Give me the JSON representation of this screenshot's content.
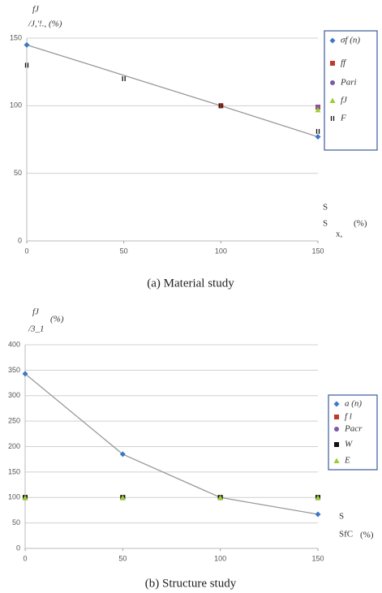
{
  "chart_data": [
    {
      "type": "scatter",
      "caption": "(a) Material study",
      "y_label": [
        "fJ",
        "/J,'!., (%)"
      ],
      "x_label": [
        "S",
        "S",
        "x,",
        "(%)"
      ],
      "xlim": [
        0,
        150
      ],
      "xticks": [
        0,
        50,
        100,
        150
      ],
      "ylim": [
        0,
        150
      ],
      "yticks": [
        0,
        50,
        100,
        150
      ],
      "grid": true,
      "legend": "right",
      "series": [
        {
          "name": "σf (n)",
          "color": "#3c78c8",
          "marker": "diamond",
          "line_color": "#999999",
          "x": [
            0,
            100,
            150
          ],
          "values": [
            145,
            100,
            77
          ]
        },
        {
          "name": "ff",
          "color": "#c0392b",
          "marker": "square",
          "x": [
            100,
            150
          ],
          "values": [
            100,
            99
          ]
        },
        {
          "name": "Pari",
          "color": "#7b5aa6",
          "marker": "circle",
          "x": [
            150
          ],
          "values": [
            99
          ]
        },
        {
          "name": "fJ",
          "color": "#9acd32",
          "marker": "triangle",
          "x": [
            150
          ],
          "values": [
            97
          ]
        },
        {
          "name": "F",
          "color": "#111111",
          "marker": "bars",
          "x": [
            0,
            50,
            100,
            150
          ],
          "values": [
            130,
            120,
            100,
            81
          ]
        }
      ]
    },
    {
      "type": "scatter",
      "caption": "(b) Structure study",
      "y_label": [
        "fJ",
        "/3_1",
        "(%)"
      ],
      "x_label": [
        "S",
        "SfC",
        "(%)"
      ],
      "xlim": [
        0,
        150
      ],
      "xticks": [
        0,
        50,
        100,
        150
      ],
      "ylim": [
        0,
        400
      ],
      "yticks": [
        0,
        50,
        100,
        150,
        200,
        250,
        300,
        350,
        400
      ],
      "grid": true,
      "legend": "right",
      "series": [
        {
          "name": "a (n)",
          "color": "#3c78c8",
          "marker": "diamond",
          "line_color": "#999999",
          "x": [
            0,
            50,
            100,
            150
          ],
          "values": [
            343,
            185,
            100,
            67
          ]
        },
        {
          "name": "f l",
          "color": "#c0392b",
          "marker": "square",
          "x": [
            0,
            50,
            100,
            150
          ],
          "values": [
            100,
            100,
            100,
            100
          ]
        },
        {
          "name": "Pacr",
          "color": "#7b5aa6",
          "marker": "circle",
          "x": [
            0,
            50,
            100,
            150
          ],
          "values": [
            100,
            100,
            100,
            100
          ]
        },
        {
          "name": "W",
          "color": "#111111",
          "marker": "square",
          "x": [
            0,
            50,
            100,
            150
          ],
          "values": [
            100,
            100,
            100,
            100
          ]
        },
        {
          "name": "E",
          "color": "#9acd32",
          "marker": "triangle",
          "x": [
            0,
            50,
            100,
            150
          ],
          "values": [
            100,
            100,
            100,
            100
          ]
        }
      ]
    }
  ]
}
